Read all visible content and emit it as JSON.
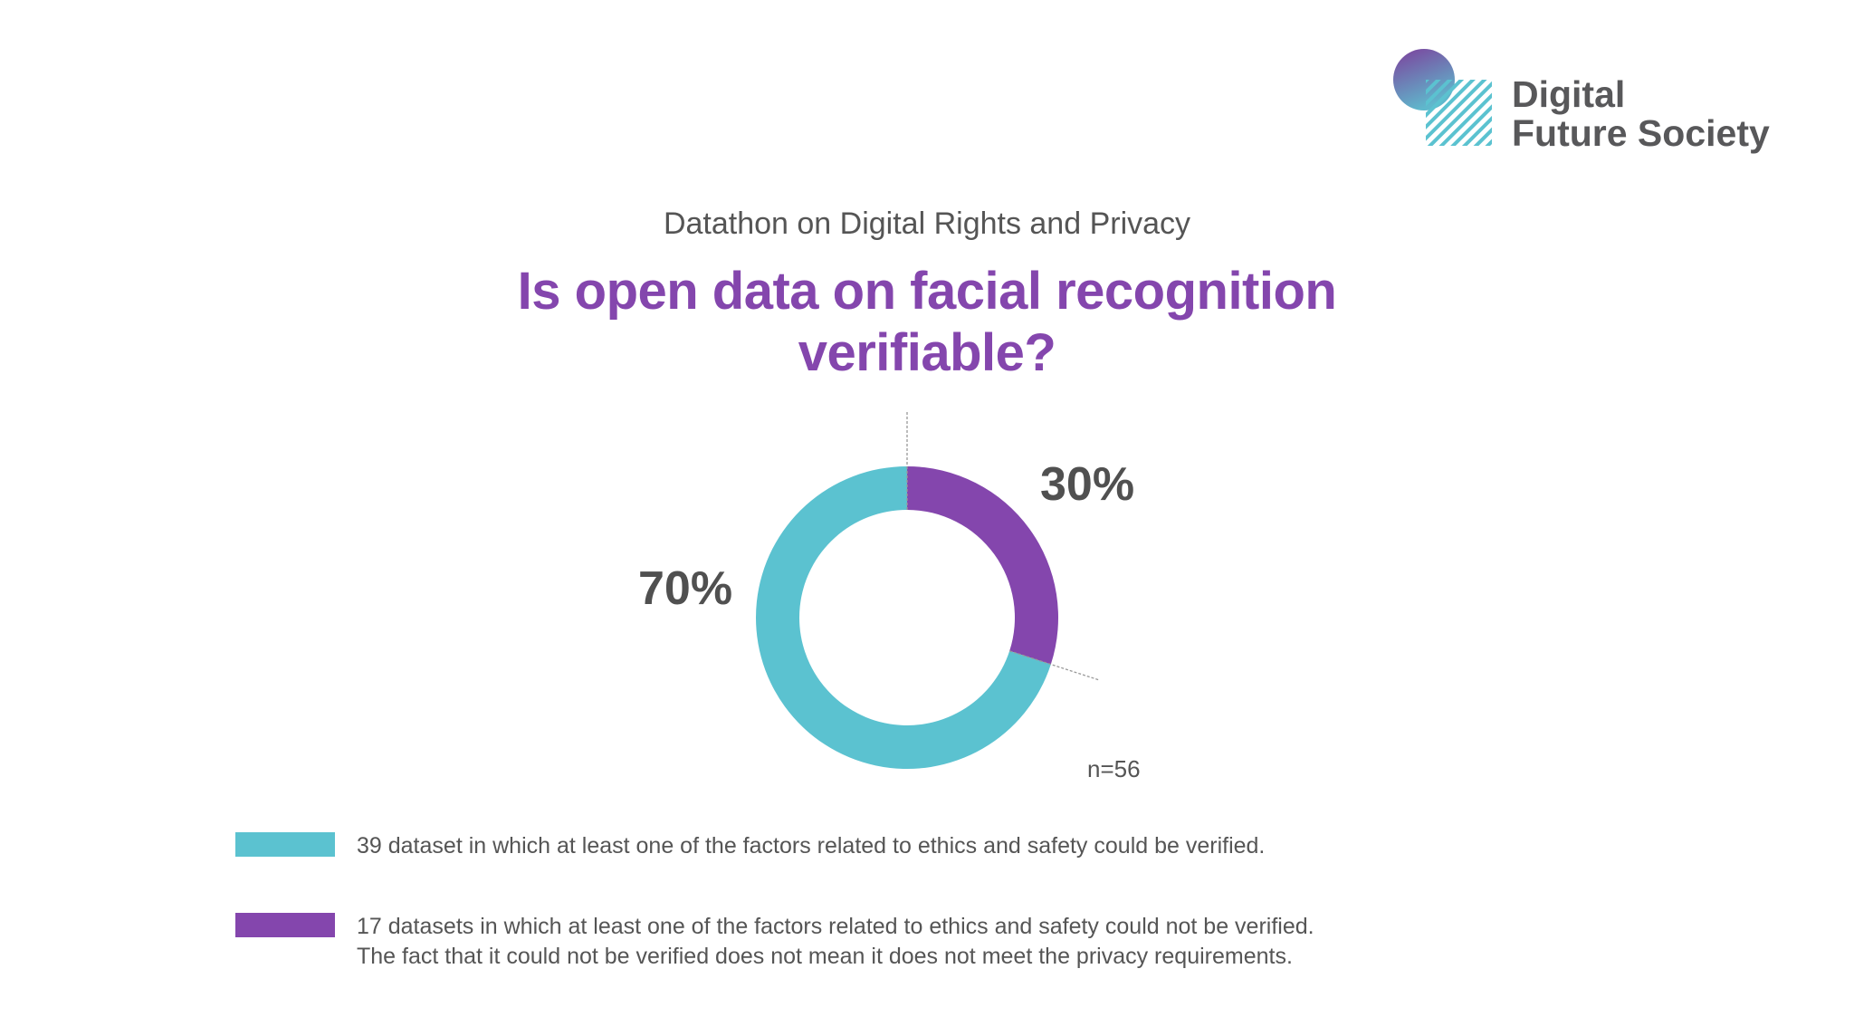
{
  "logo": {
    "line1": "Digital",
    "line2": "Future Society"
  },
  "subtitle": "Datathon on Digital Rights and Privacy",
  "title_line1": "Is open data on facial recognition",
  "title_line2": "verifiable?",
  "chart_data": {
    "type": "pie",
    "donut": true,
    "n_label": "n=56",
    "slices": [
      {
        "label": "30%",
        "value": 30,
        "count": 17,
        "color": "#8446AD"
      },
      {
        "label": "70%",
        "value": 70,
        "count": 39,
        "color": "#5BC2D0"
      }
    ],
    "legend": [
      {
        "color": "#5BC2D0",
        "lines": [
          "39 dataset in which at least one of the factors related to ethics and safety could be verified."
        ]
      },
      {
        "color": "#8446AD",
        "lines": [
          "17 datasets in which at least one of the factors related to ethics and safety could not be verified.",
          "The fact that it could not be verified does not mean it does not meet the privacy requirements."
        ]
      }
    ]
  }
}
